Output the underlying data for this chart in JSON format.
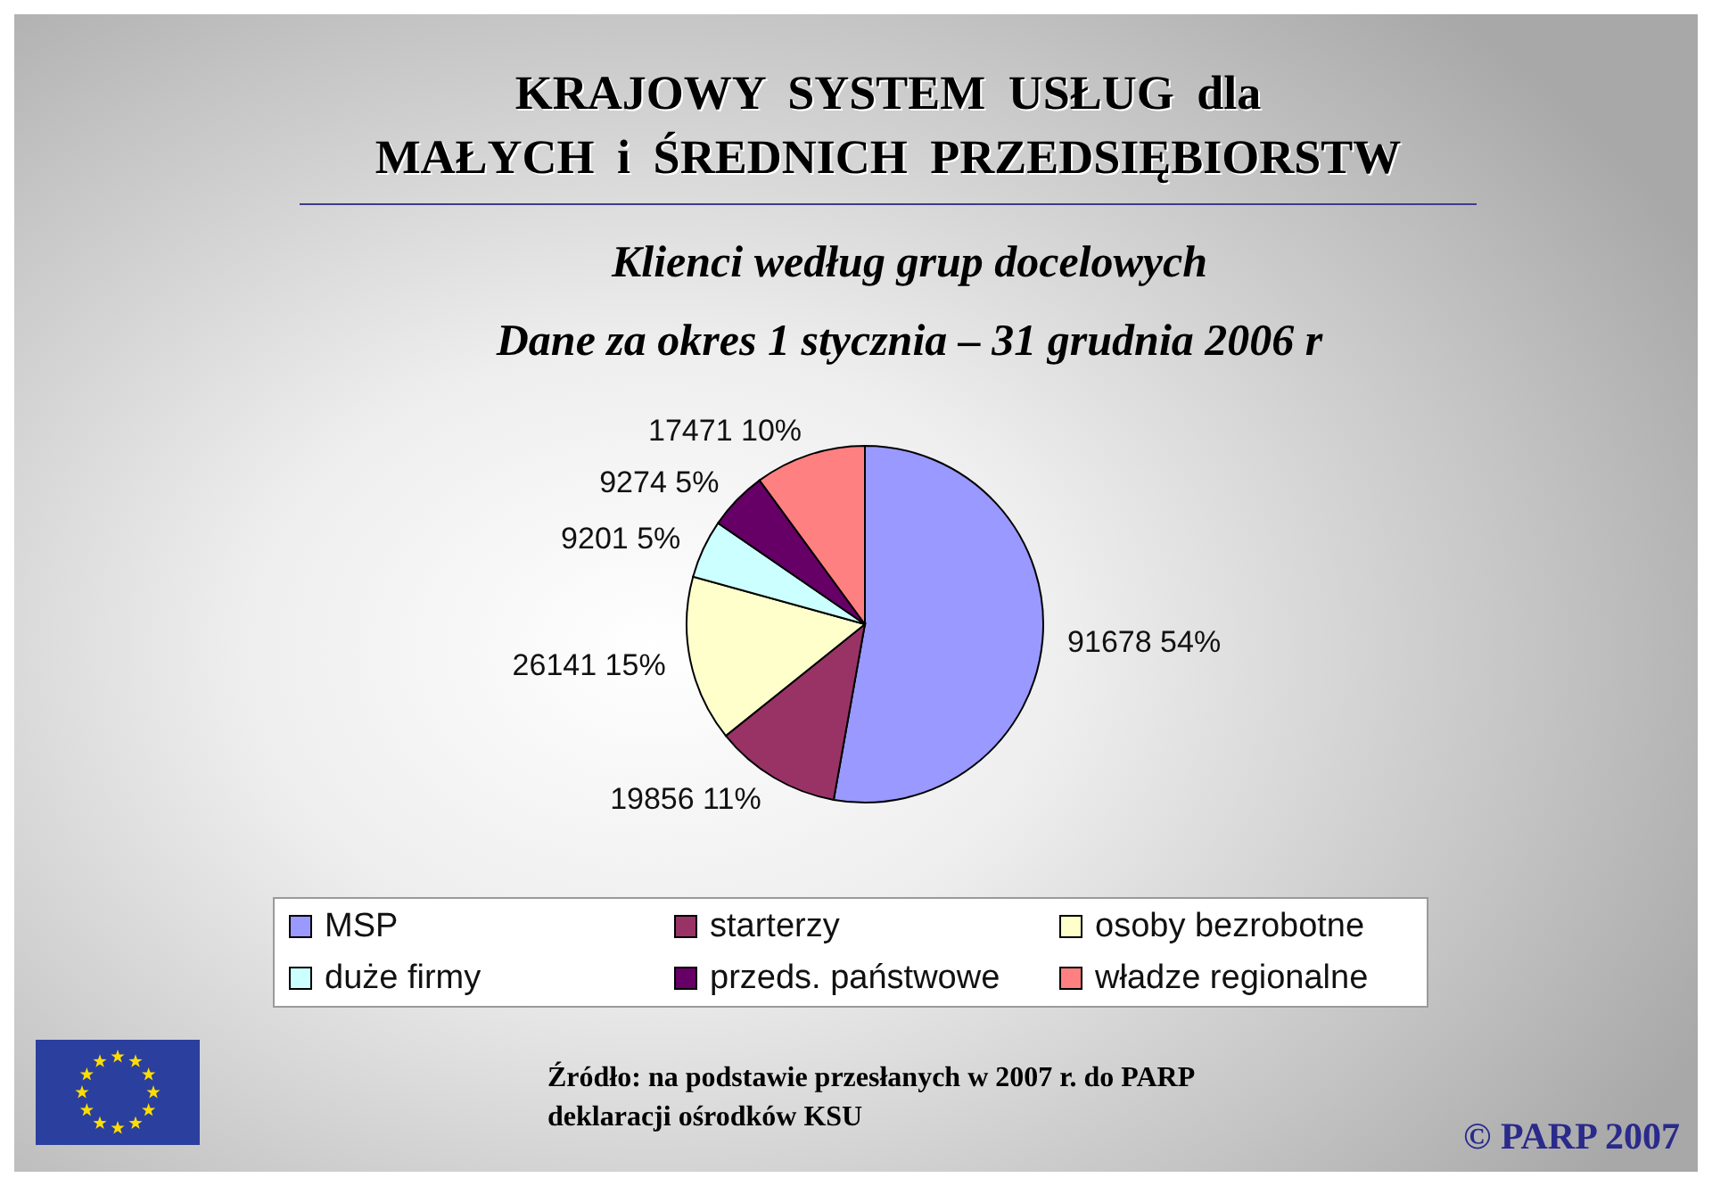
{
  "chart_data": {
    "type": "pie",
    "title": "KRAJOWY SYSTEM USŁUG dla\nMAŁYCH i ŚREDNICH PRZEDSIĘBIORSTW",
    "subtitle": "Klienci według grup docelowych\nDane za okres 1 stycznia – 31 grudnia 2006 r",
    "categories": [
      "MSP",
      "starterzy",
      "osoby bezrobotne",
      "duże firmy",
      "przeds. państwowe",
      "władze regionalne"
    ],
    "values": [
      91678,
      19856,
      26141,
      9201,
      9274,
      17471
    ],
    "value_labels": [
      "91678 54%",
      "19856 11%",
      "26141 15%",
      "9201 5%",
      "9274 5%",
      "17471 10%"
    ],
    "colors": [
      "#9999ff",
      "#993366",
      "#ffffcc",
      "#ccffff",
      "#660066",
      "#ff8080"
    ],
    "legend": "bottom",
    "annotations": [
      "Źródło: na podstawie przesłanych w 2007 r. do PARP\ndeklaracji ośrodków KSU",
      "© PARP 2007"
    ]
  }
}
